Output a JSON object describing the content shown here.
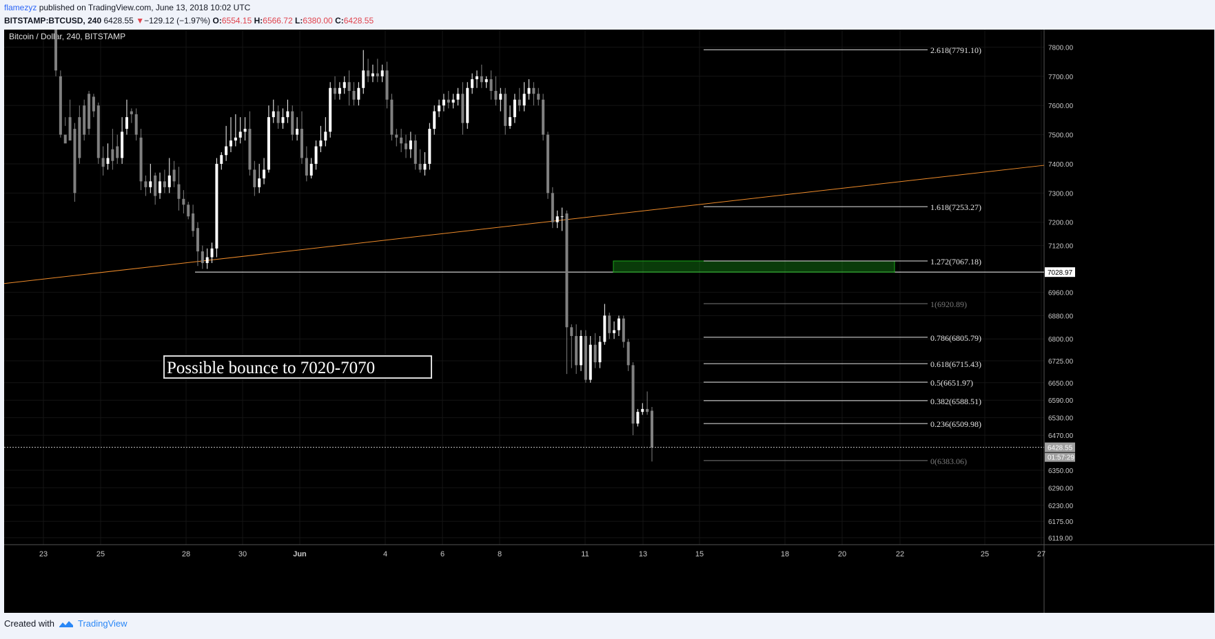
{
  "header": {
    "user": "flamezyz",
    "published": "published on TradingView.com, June 13, 2018 10:02 UTC",
    "symbol": "BITSTAMP:BTCUSD, 240",
    "price": "6428.55",
    "arrow": "▼",
    "change": "−129.12 (−1.97%)",
    "o_label": "O:",
    "o_val": "6554.15",
    "h_label": "H:",
    "h_val": "6566.72",
    "l_label": "L:",
    "l_val": "6380.00",
    "c_label": "C:",
    "c_val": "6428.55"
  },
  "footer": {
    "created": "Created with",
    "brand": "TradingView"
  },
  "colors": {
    "background": "#000000",
    "candle_up": "#ffffff",
    "candle_down": "#808080",
    "trendline": "#f08c2a",
    "zone": "#1aa81a",
    "fib": "#ffffff"
  },
  "chart_data": {
    "type": "candlestick",
    "title": "Bitcoin / Dollar, 240, BITSTAMP",
    "annotation": "Possible bounce to 7020-7070",
    "x_ticks": [
      "23",
      "25",
      "28",
      "30",
      "Jun",
      "4",
      "6",
      "8",
      "11",
      "13",
      "15",
      "18",
      "20",
      "22",
      "25",
      "27"
    ],
    "y_ticks": [
      "7800.00",
      "7700.00",
      "7600.00",
      "7500.00",
      "7400.00",
      "7300.00",
      "7200.00",
      "7120.00",
      "6960.00",
      "6880.00",
      "6800.00",
      "6725.00",
      "6650.00",
      "6590.00",
      "6530.00",
      "6470.00",
      "6350.00",
      "6290.00",
      "6230.00",
      "6175.00",
      "6119.00"
    ],
    "ylim": [
      6095,
      7860
    ],
    "last_price": "6428.55",
    "countdown": "01:57:29",
    "support_level": "7028.97",
    "support_value": 7028.97,
    "target_zone": [
      7028.97,
      7067.18
    ],
    "trendline": {
      "start": 6990,
      "end": 7395
    },
    "fib_levels": [
      {
        "label": "2.618(7791.10)",
        "value": 7791.1,
        "faded": false
      },
      {
        "label": "1.618(7253.27)",
        "value": 7253.27,
        "faded": false
      },
      {
        "label": "1.272(7067.18)",
        "value": 7067.18,
        "faded": false
      },
      {
        "label": "1(6920.89)",
        "value": 6920.89,
        "faded": true
      },
      {
        "label": "0.786(6805.79)",
        "value": 6805.79,
        "faded": false
      },
      {
        "label": "0.618(6715.43)",
        "value": 6715.43,
        "faded": false
      },
      {
        "label": "0.5(6651.97)",
        "value": 6651.97,
        "faded": false
      },
      {
        "label": "0.382(6588.51)",
        "value": 6588.51,
        "faded": false
      },
      {
        "label": "0.236(6509.98)",
        "value": 6509.98,
        "faded": false
      },
      {
        "label": "0(6383.06)",
        "value": 6383.06,
        "faded": true
      }
    ],
    "candles": [
      [
        7870,
        7900,
        7720,
        7700
      ],
      [
        7700,
        7720,
        7500,
        7490
      ],
      [
        7500,
        7560,
        7470,
        7530
      ],
      [
        7560,
        7620,
        7480,
        7490
      ],
      [
        7520,
        7540,
        7300,
        7270
      ],
      [
        7560,
        7600,
        7420,
        7400
      ],
      [
        7600,
        7620,
        7500,
        7480
      ],
      [
        7640,
        7650,
        7520,
        7500
      ],
      [
        7630,
        7640,
        7580,
        7560
      ],
      [
        7600,
        7610,
        7420,
        7400
      ],
      [
        7420,
        7460,
        7390,
        7360
      ],
      [
        7400,
        7470,
        7420,
        7380
      ],
      [
        7450,
        7520,
        7410,
        7380
      ],
      [
        7460,
        7500,
        7420,
        7400
      ],
      [
        7420,
        7560,
        7510,
        7400
      ],
      [
        7520,
        7620,
        7560,
        7500
      ],
      [
        7580,
        7590,
        7570,
        7540
      ],
      [
        7570,
        7590,
        7500,
        7480
      ],
      [
        7490,
        7520,
        7340,
        7310
      ],
      [
        7340,
        7360,
        7320,
        7290
      ],
      [
        7320,
        7400,
        7340,
        7300
      ],
      [
        7360,
        7370,
        7290,
        7260
      ],
      [
        7300,
        7370,
        7340,
        7280
      ],
      [
        7340,
        7380,
        7320,
        7300
      ],
      [
        7320,
        7420,
        7360,
        7300
      ],
      [
        7380,
        7410,
        7340,
        7320
      ],
      [
        7330,
        7390,
        7280,
        7240
      ],
      [
        7280,
        7310,
        7260,
        7230
      ],
      [
        7260,
        7270,
        7220,
        7210
      ],
      [
        7230,
        7260,
        7170,
        7150
      ],
      [
        7180,
        7200,
        7100,
        7050
      ],
      [
        7100,
        7120,
        7060,
        7040
      ],
      [
        7060,
        7110,
        7080,
        7040
      ],
      [
        7080,
        7130,
        7110,
        7060
      ],
      [
        7110,
        7420,
        7400,
        7080
      ],
      [
        7400,
        7440,
        7430,
        7380
      ],
      [
        7430,
        7530,
        7460,
        7410
      ],
      [
        7460,
        7560,
        7480,
        7440
      ],
      [
        7480,
        7570,
        7490,
        7460
      ],
      [
        7490,
        7560,
        7510,
        7470
      ],
      [
        7510,
        7560,
        7520,
        7480
      ],
      [
        7520,
        7580,
        7380,
        7360
      ],
      [
        7380,
        7410,
        7320,
        7290
      ],
      [
        7320,
        7400,
        7350,
        7300
      ],
      [
        7350,
        7420,
        7380,
        7330
      ],
      [
        7380,
        7600,
        7560,
        7370
      ],
      [
        7560,
        7620,
        7580,
        7540
      ],
      [
        7580,
        7600,
        7540,
        7520
      ],
      [
        7540,
        7590,
        7560,
        7520
      ],
      [
        7560,
        7620,
        7580,
        7540
      ],
      [
        7580,
        7600,
        7500,
        7480
      ],
      [
        7500,
        7560,
        7520,
        7480
      ],
      [
        7520,
        7580,
        7420,
        7400
      ],
      [
        7420,
        7460,
        7360,
        7340
      ],
      [
        7360,
        7420,
        7400,
        7350
      ],
      [
        7400,
        7480,
        7460,
        7380
      ],
      [
        7460,
        7530,
        7480,
        7440
      ],
      [
        7480,
        7560,
        7510,
        7460
      ],
      [
        7510,
        7680,
        7660,
        7490
      ],
      [
        7660,
        7700,
        7640,
        7620
      ],
      [
        7640,
        7680,
        7660,
        7620
      ],
      [
        7660,
        7700,
        7680,
        7640
      ],
      [
        7680,
        7720,
        7650,
        7600
      ],
      [
        7650,
        7680,
        7620,
        7600
      ],
      [
        7620,
        7680,
        7660,
        7600
      ],
      [
        7660,
        7790,
        7720,
        7640
      ],
      [
        7720,
        7760,
        7700,
        7680
      ],
      [
        7700,
        7740,
        7710,
        7680
      ],
      [
        7710,
        7760,
        7700,
        7680
      ],
      [
        7700,
        7740,
        7720,
        7680
      ],
      [
        7720,
        7750,
        7620,
        7590
      ],
      [
        7620,
        7640,
        7500,
        7480
      ],
      [
        7500,
        7520,
        7490,
        7460
      ],
      [
        7490,
        7520,
        7470,
        7440
      ],
      [
        7470,
        7500,
        7450,
        7420
      ],
      [
        7450,
        7510,
        7480,
        7420
      ],
      [
        7480,
        7500,
        7400,
        7380
      ],
      [
        7400,
        7450,
        7380,
        7370
      ],
      [
        7380,
        7440,
        7400,
        7360
      ],
      [
        7400,
        7540,
        7520,
        7380
      ],
      [
        7520,
        7600,
        7580,
        7500
      ],
      [
        7580,
        7620,
        7600,
        7560
      ],
      [
        7600,
        7640,
        7620,
        7580
      ],
      [
        7620,
        7650,
        7610,
        7590
      ],
      [
        7610,
        7640,
        7620,
        7590
      ],
      [
        7620,
        7660,
        7640,
        7600
      ],
      [
        7640,
        7680,
        7540,
        7500
      ],
      [
        7540,
        7680,
        7660,
        7520
      ],
      [
        7660,
        7710,
        7690,
        7640
      ],
      [
        7690,
        7720,
        7700,
        7660
      ],
      [
        7700,
        7740,
        7680,
        7660
      ],
      [
        7680,
        7700,
        7690,
        7660
      ],
      [
        7690,
        7720,
        7650,
        7620
      ],
      [
        7650,
        7700,
        7620,
        7600
      ],
      [
        7620,
        7660,
        7640,
        7580
      ],
      [
        7640,
        7660,
        7530,
        7500
      ],
      [
        7530,
        7600,
        7560,
        7520
      ],
      [
        7560,
        7640,
        7620,
        7540
      ],
      [
        7620,
        7660,
        7600,
        7580
      ],
      [
        7600,
        7680,
        7640,
        7580
      ],
      [
        7640,
        7690,
        7660,
        7620
      ],
      [
        7660,
        7680,
        7640,
        7600
      ],
      [
        7640,
        7660,
        7620,
        7600
      ],
      [
        7620,
        7640,
        7500,
        7480
      ],
      [
        7500,
        7510,
        7300,
        7280
      ],
      [
        7300,
        7320,
        7200,
        7180
      ],
      [
        7200,
        7240,
        7220,
        7180
      ],
      [
        7220,
        7250,
        7220,
        7170
      ],
      [
        7230,
        7240,
        6840,
        6680
      ],
      [
        6840,
        6850,
        6810,
        6700
      ],
      [
        6810,
        6850,
        6710,
        6680
      ],
      [
        6710,
        6830,
        6810,
        6690
      ],
      [
        6810,
        6830,
        6660,
        6650
      ],
      [
        6660,
        6810,
        6780,
        6650
      ],
      [
        6780,
        6820,
        6720,
        6700
      ],
      [
        6720,
        6810,
        6790,
        6700
      ],
      [
        6790,
        6920,
        6880,
        6780
      ],
      [
        6880,
        6890,
        6820,
        6800
      ],
      [
        6820,
        6860,
        6830,
        6800
      ],
      [
        6830,
        6880,
        6870,
        6810
      ],
      [
        6870,
        6880,
        6790,
        6770
      ],
      [
        6790,
        6800,
        6710,
        6690
      ],
      [
        6710,
        6720,
        6510,
        6470
      ],
      [
        6510,
        6560,
        6550,
        6500
      ],
      [
        6550,
        6580,
        6560,
        6540
      ],
      [
        6560,
        6620,
        6550,
        6540
      ],
      [
        6554,
        6567,
        6428,
        6380
      ]
    ]
  }
}
